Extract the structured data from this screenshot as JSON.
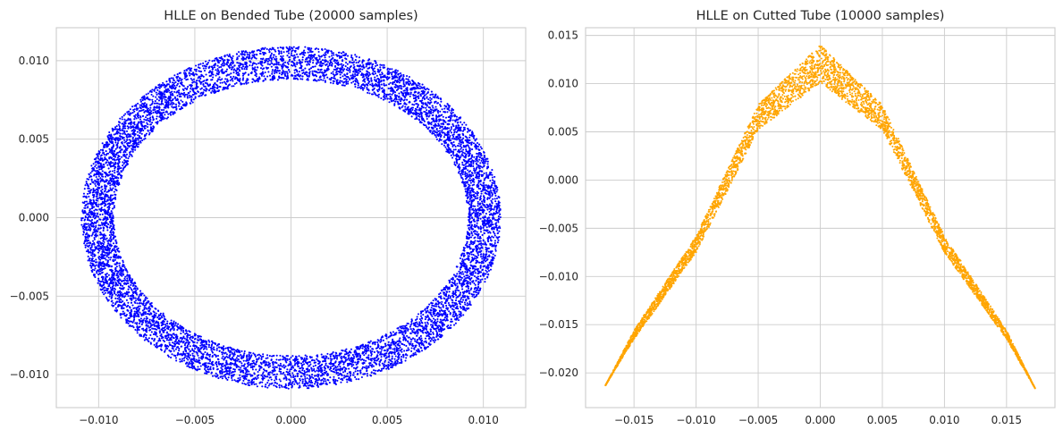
{
  "chart_data": [
    {
      "type": "scatter",
      "title": "HLLE on Bended Tube (20000 samples)",
      "xlabel": "",
      "ylabel": "",
      "xlim": [
        -0.0122,
        0.0122
      ],
      "ylim": [
        -0.0121,
        0.0121
      ],
      "xticks": [
        -0.01,
        -0.005,
        0.0,
        0.005,
        0.01
      ],
      "xtick_labels": [
        "−0.010",
        "−0.005",
        "0.000",
        "0.005",
        "0.010"
      ],
      "yticks": [
        -0.01,
        -0.005,
        0.0,
        0.005,
        0.01
      ],
      "ytick_labels": [
        "−0.010",
        "−0.005",
        "0.000",
        "0.005",
        "0.010"
      ],
      "grid": true,
      "color": "#0000ff",
      "shape": "elliptical ring",
      "center": [
        0.0,
        0.0
      ],
      "outer_radius": [
        0.0109,
        0.0109
      ],
      "inner_radius": [
        0.0092,
        0.0088
      ],
      "n_points": 20000
    },
    {
      "type": "scatter",
      "title": "HLLE on Cutted Tube (10000 samples)",
      "xlabel": "",
      "ylabel": "",
      "xlim": [
        -0.0189,
        0.0189
      ],
      "ylim": [
        -0.0236,
        0.0158
      ],
      "xticks": [
        -0.015,
        -0.01,
        -0.005,
        0.0,
        0.005,
        0.01,
        0.015
      ],
      "xtick_labels": [
        "−0.015",
        "−0.010",
        "−0.005",
        "0.000",
        "0.005",
        "0.010",
        "0.015"
      ],
      "yticks": [
        -0.02,
        -0.015,
        -0.01,
        -0.005,
        0.0,
        0.005,
        0.01,
        0.015
      ],
      "ytick_labels": [
        "−0.020",
        "−0.015",
        "−0.010",
        "−0.005",
        "0.000",
        "0.005",
        "0.010",
        "0.015"
      ],
      "grid": true,
      "color": "#ffa500",
      "shape": "arch band",
      "x_range": [
        -0.0173,
        0.0173
      ],
      "upper_edge": [
        [
          -0.0173,
          -0.0213
        ],
        [
          -0.015,
          -0.0156
        ],
        [
          -0.01,
          -0.0058
        ],
        [
          -0.005,
          0.0078
        ],
        [
          0.0,
          0.014
        ],
        [
          0.005,
          0.0078
        ],
        [
          0.01,
          -0.0058
        ],
        [
          0.015,
          -0.0156
        ],
        [
          0.0173,
          -0.0216
        ]
      ],
      "lower_edge": [
        [
          -0.0173,
          -0.0213
        ],
        [
          -0.015,
          -0.0165
        ],
        [
          -0.01,
          -0.0075
        ],
        [
          -0.005,
          0.0052
        ],
        [
          0.0,
          0.0101
        ],
        [
          0.005,
          0.0052
        ],
        [
          0.01,
          -0.0075
        ],
        [
          0.015,
          -0.0165
        ],
        [
          0.0173,
          -0.0216
        ]
      ],
      "n_points": 10000
    }
  ]
}
